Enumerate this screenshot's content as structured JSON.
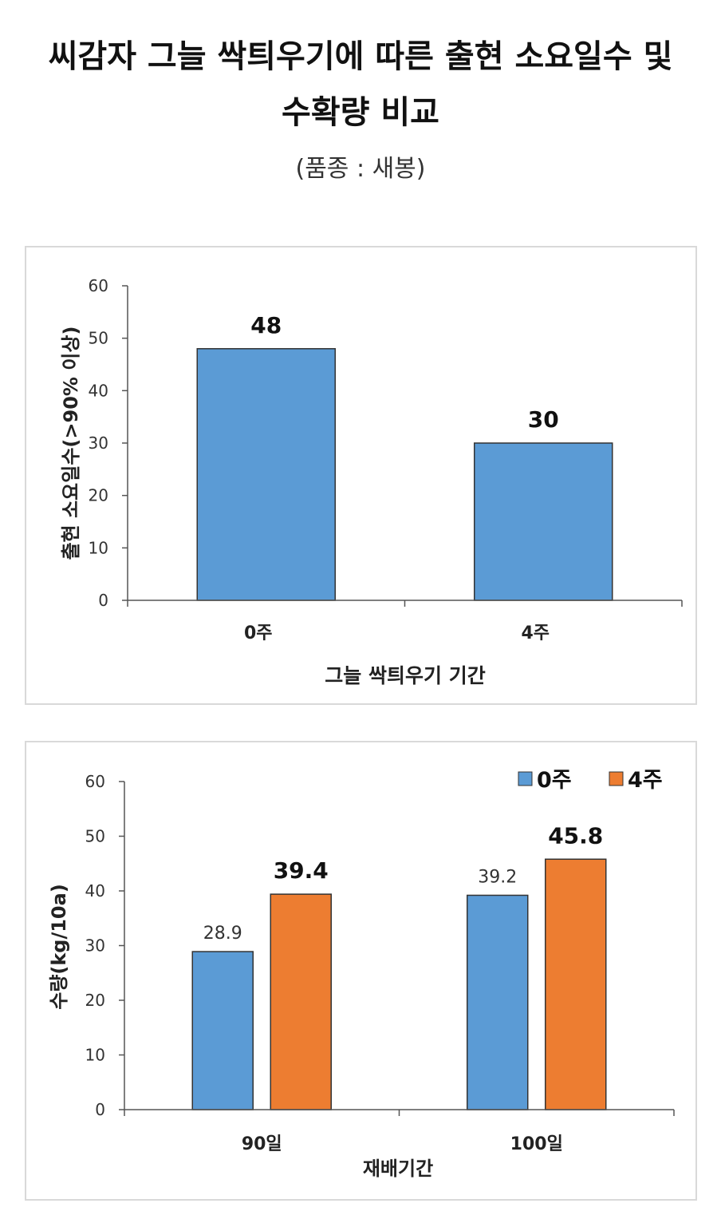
{
  "header": {
    "title_line1": "씨감자 그늘 싹틔우기에 따른 출현 소요일수 및",
    "title_line2": "수확량 비교",
    "subtitle": "(품종 : 새봉)"
  },
  "chart_data": [
    {
      "type": "bar",
      "categories": [
        "0주",
        "4주"
      ],
      "series": [
        {
          "values": [
            48,
            30
          ],
          "color": "#5b9bd5"
        }
      ],
      "data_labels": [
        "48",
        "30"
      ],
      "ylabel": "출현 소요일수(>90% 이상)",
      "xlabel": "그늘 싹틔우기 기간",
      "ylim": [
        0,
        60
      ],
      "yticks": [
        "0",
        "10",
        "20",
        "30",
        "40",
        "50",
        "60"
      ],
      "grid": false,
      "legend": false
    },
    {
      "type": "bar",
      "categories": [
        "90일",
        "100일"
      ],
      "series": [
        {
          "name": "0주",
          "values": [
            28.9,
            39.2
          ],
          "color": "#5b9bd5",
          "data_labels": [
            "28.9",
            "39.2"
          ]
        },
        {
          "name": "4주",
          "values": [
            39.4,
            45.8
          ],
          "color": "#ed7d31",
          "data_labels": [
            "39.4",
            "45.8"
          ]
        }
      ],
      "ylabel": "수량(kg/10a)",
      "xlabel": "재배기간",
      "ylim": [
        0,
        60
      ],
      "yticks": [
        "0",
        "10",
        "20",
        "30",
        "40",
        "50",
        "60"
      ],
      "grid": false,
      "legend": "top-right"
    }
  ]
}
